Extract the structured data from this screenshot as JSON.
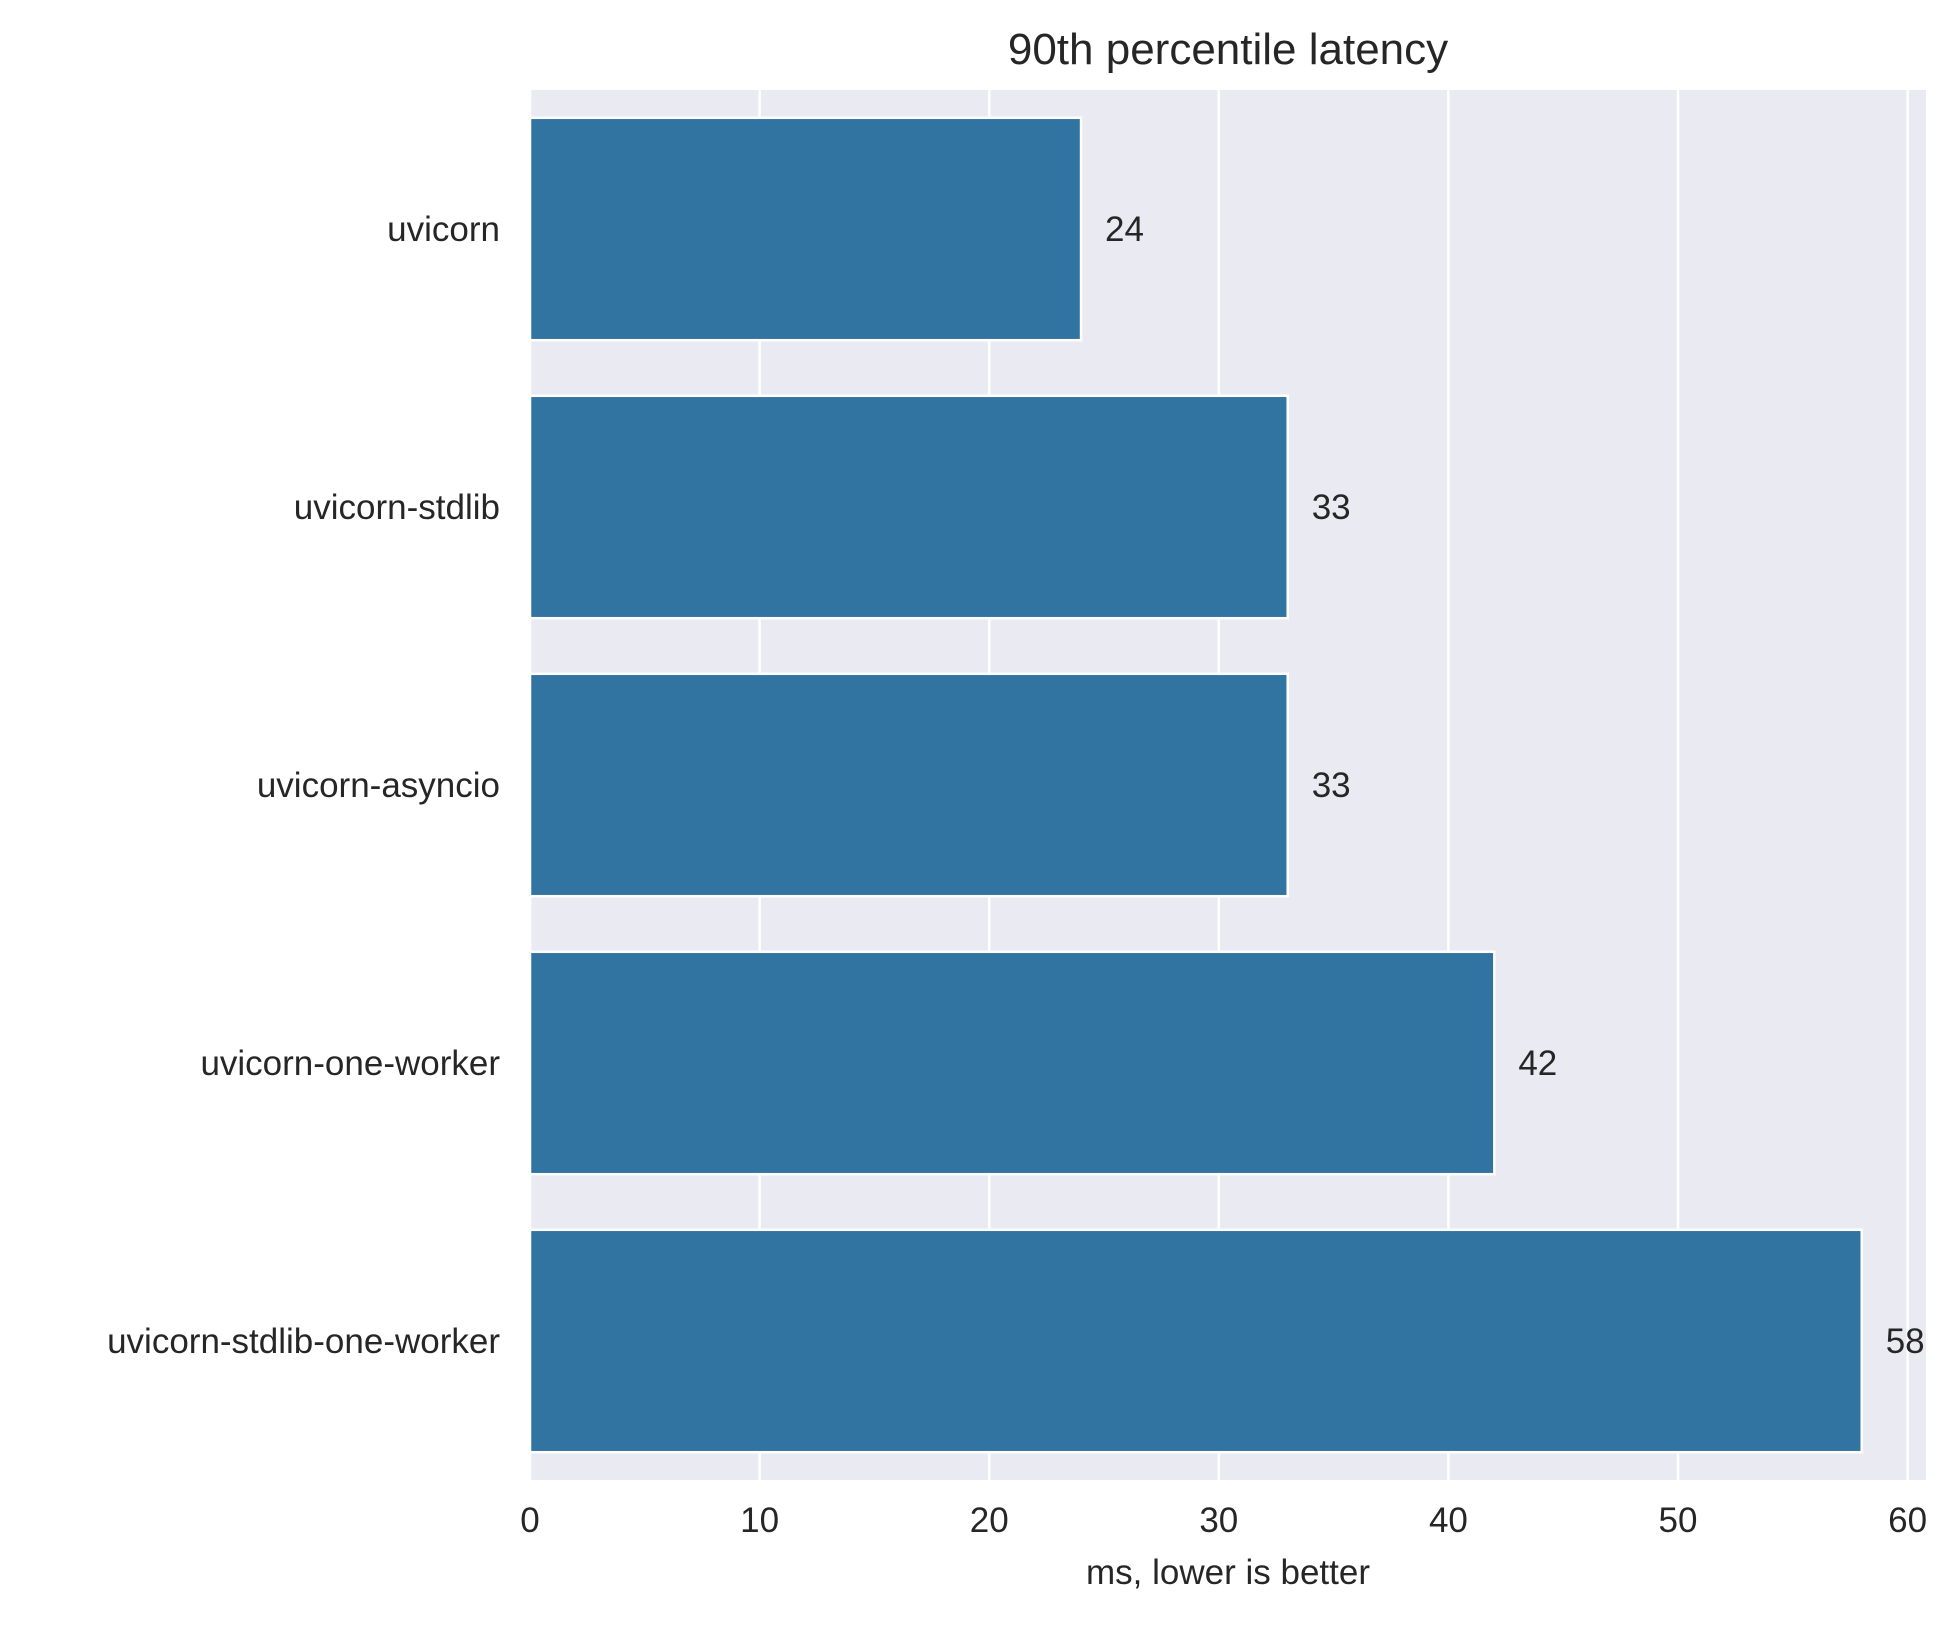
{
  "chart_data": {
    "type": "bar",
    "orientation": "horizontal",
    "title": "90th percentile latency",
    "xlabel": "ms, lower is better",
    "ylabel": "",
    "categories": [
      "uvicorn",
      "uvicorn-stdlib",
      "uvicorn-asyncio",
      "uvicorn-one-worker",
      "uvicorn-stdlib-one-worker"
    ],
    "values": [
      24,
      33,
      33,
      42,
      58
    ],
    "value_labels": [
      "24",
      "33",
      "33",
      "42",
      "58"
    ],
    "xlim": [
      0,
      60.8
    ],
    "xticks": [
      0,
      10,
      20,
      30,
      40,
      50,
      60
    ],
    "xtick_labels": [
      "0",
      "10",
      "20",
      "30",
      "40",
      "50",
      "60"
    ],
    "grid": true,
    "legend": "none",
    "colors": {
      "bar": "#3274a1",
      "background": "#eaeaf2",
      "grid": "#ffffff",
      "text": "#262626"
    }
  }
}
